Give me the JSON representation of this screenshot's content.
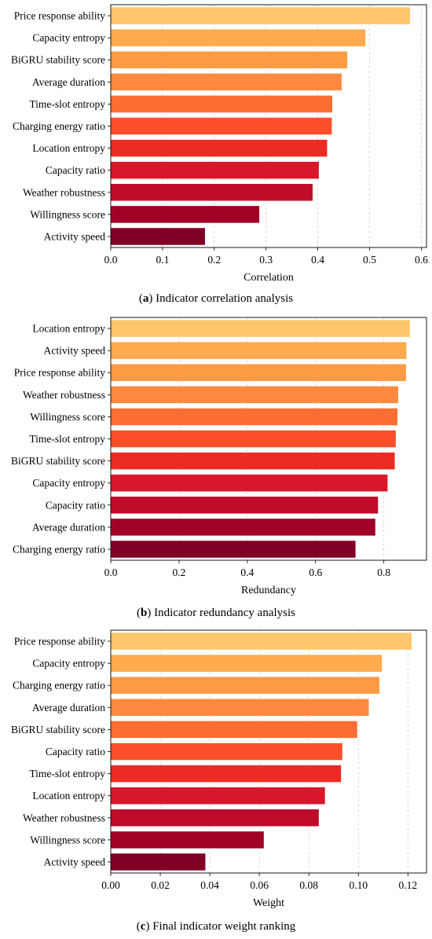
{
  "chart_data": [
    {
      "type": "bar",
      "orientation": "horizontal",
      "caption_letter": "a",
      "caption_text": "Indicator correlation analysis",
      "xlabel": "Correlation",
      "xlim": [
        0,
        0.61
      ],
      "xticks": [
        0.0,
        0.1,
        0.2,
        0.3,
        0.4,
        0.5,
        0.6
      ],
      "tick_format": "0.0",
      "grid": "vertical dashed",
      "categories": [
        "Price response ability",
        "Capacity entropy",
        "BiGRU stability score",
        "Average duration",
        "Time-slot entropy",
        "Charging energy ratio",
        "Location entropy",
        "Capacity ratio",
        "Weather robustness",
        "Willingness score",
        "Activity speed"
      ],
      "values": [
        0.578,
        0.492,
        0.457,
        0.446,
        0.428,
        0.427,
        0.418,
        0.402,
        0.39,
        0.287,
        0.182
      ]
    },
    {
      "type": "bar",
      "orientation": "horizontal",
      "caption_letter": "b",
      "caption_text": "Indicator redundancy analysis",
      "xlabel": "Redundancy",
      "xlim": [
        0,
        0.925
      ],
      "xticks": [
        0.0,
        0.2,
        0.4,
        0.6,
        0.8
      ],
      "tick_format": "0.0",
      "grid": "vertical dashed",
      "categories": [
        "Location entropy",
        "Activity speed",
        "Price response ability",
        "Weather robustness",
        "Willingness score",
        "Time-slot entropy",
        "BiGRU stability score",
        "Capacity entropy",
        "Capacity ratio",
        "Average duration",
        "Charging energy ratio"
      ],
      "values": [
        0.876,
        0.866,
        0.865,
        0.842,
        0.84,
        0.835,
        0.832,
        0.811,
        0.783,
        0.775,
        0.717
      ]
    },
    {
      "type": "bar",
      "orientation": "horizontal",
      "caption_letter": "c",
      "caption_text": "Final indicator weight ranking",
      "xlabel": "Weight",
      "xlim": [
        0,
        0.1275
      ],
      "xticks": [
        0.0,
        0.02,
        0.04,
        0.06,
        0.08,
        0.1,
        0.12
      ],
      "tick_format": "0.00",
      "grid": "vertical dashed",
      "categories": [
        "Price response ability",
        "Capacity entropy",
        "Charging energy ratio",
        "Average duration",
        "BiGRU stability score",
        "Capacity ratio",
        "Time-slot entropy",
        "Location entropy",
        "Weather robustness",
        "Willingness score",
        "Activity speed"
      ],
      "values": [
        0.1215,
        0.1095,
        0.1085,
        0.1042,
        0.0995,
        0.0935,
        0.093,
        0.0865,
        0.084,
        0.0618,
        0.0382
      ]
    }
  ],
  "colors": [
    "#fdc66a",
    "#fdab4e",
    "#fd9b45",
    "#fd8a3f",
    "#fc6e34",
    "#fb4e2b",
    "#ec2c24",
    "#d8172a",
    "#c10b2a",
    "#a00227",
    "#800026"
  ]
}
